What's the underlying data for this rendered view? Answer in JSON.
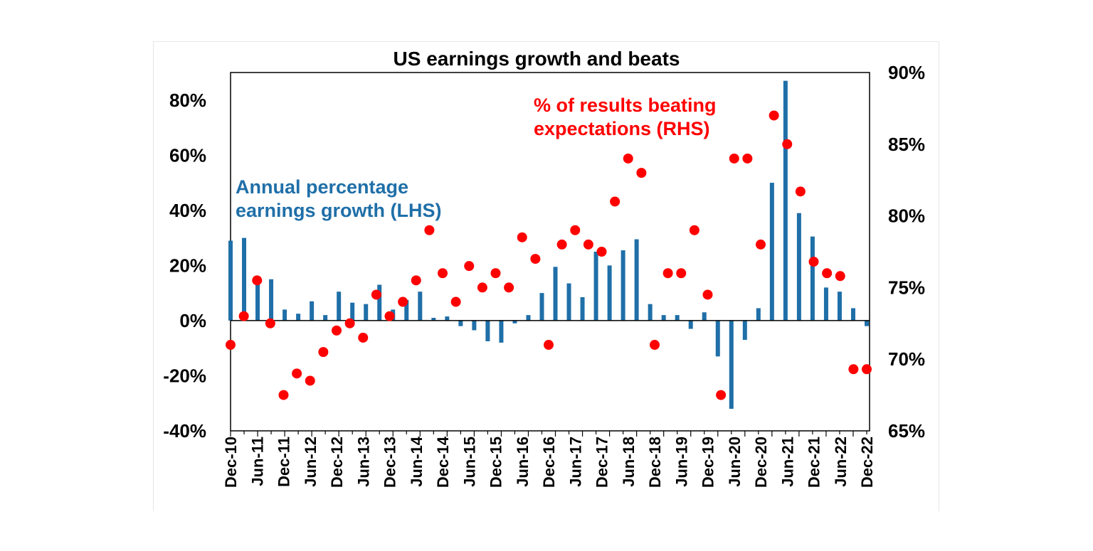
{
  "chart_data": {
    "type": "bar+scatter",
    "title": "US earnings growth and beats",
    "x_tick_labels": [
      "Dec-10",
      "Jun-11",
      "Dec-11",
      "Jun-12",
      "Dec-12",
      "Jun-13",
      "Dec-13",
      "Jun-14",
      "Dec-14",
      "Jun-15",
      "Dec-15",
      "Jun-16",
      "Dec-16",
      "Jun-17",
      "Dec-17",
      "Jun-18",
      "Dec-18",
      "Jun-19",
      "Dec-19",
      "Jun-20",
      "Dec-20",
      "Jun-21",
      "Dec-21",
      "Jun-22",
      "Dec-22"
    ],
    "left_axis": {
      "ylim": [
        -40,
        90
      ],
      "ticks": [
        -40,
        -20,
        0,
        20,
        40,
        60,
        80
      ],
      "tick_labels": [
        "-40%",
        "-20%",
        "0%",
        "20%",
        "40%",
        "60%",
        "80%"
      ]
    },
    "right_axis": {
      "ylim": [
        65,
        90
      ],
      "ticks": [
        65,
        70,
        75,
        80,
        85,
        90
      ],
      "tick_labels": [
        "65%",
        "70%",
        "75%",
        "80%",
        "85%",
        "90%"
      ]
    },
    "series": [
      {
        "name": "Annual percentage earnings growth (LHS)",
        "axis": "left",
        "kind": "bar",
        "color": "#1f6fa8",
        "label_lines": [
          "Annual percentage",
          "earnings growth (LHS)"
        ],
        "values": [
          29,
          30,
          14,
          15,
          4,
          2.5,
          7,
          2,
          10.5,
          6.5,
          6,
          13,
          4,
          7.5,
          10.5,
          1,
          1.5,
          -2,
          -3.5,
          -7.5,
          -8,
          -1,
          2,
          10,
          19.5,
          13.5,
          8.5,
          25,
          20,
          25.5,
          29.5,
          6,
          2,
          2,
          -3,
          3,
          -13,
          -32,
          -7,
          4.5,
          50,
          87,
          39,
          30.5,
          12,
          10.5,
          4.5,
          -2
        ]
      },
      {
        "name": "% of results beating expectations (RHS)",
        "axis": "right",
        "kind": "scatter",
        "color": "#ff0000",
        "label_lines": [
          "% of results beating",
          "expectations (RHS)"
        ],
        "values": [
          71,
          73,
          75.5,
          72.5,
          67.5,
          69,
          68.5,
          70.5,
          72,
          72.5,
          71.5,
          74.5,
          73,
          74,
          75.5,
          79,
          76,
          74,
          76.5,
          75,
          76,
          75,
          78.5,
          77,
          71,
          78,
          79,
          78,
          77.5,
          81,
          84,
          83,
          71,
          76,
          76,
          79,
          74.5,
          67.5,
          84,
          84,
          78,
          87,
          85,
          81.7,
          76.8,
          76,
          75.8,
          69.3,
          69.3
        ]
      }
    ]
  }
}
